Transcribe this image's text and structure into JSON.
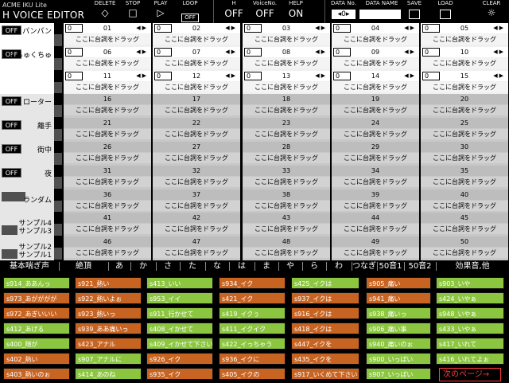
{
  "app": {
    "subtitle": "ACME IKU Lite",
    "title": "H VOICE EDITOR"
  },
  "toolbar": {
    "delete_label": "DELETE",
    "delete_icon": "◇",
    "stop_label": "STOP",
    "stop_icon": "□",
    "play_label": "PLAY",
    "play_icon": "▷",
    "loop_label": "LOOP",
    "loop_value": "OFF",
    "h_label": "H",
    "h_value": "OFF",
    "voiceno_label": "VoiceNo.",
    "voiceno_value": "OFF",
    "help_label": "HELP",
    "help_value": "ON",
    "datano_label": "DATA No.",
    "datano_value": "0",
    "dataname_label": "DATA NAME",
    "save_label": "SAVE",
    "load_label": "LOAD",
    "clear_label": "CLEAR",
    "clear_icon": "☼"
  },
  "drag_text": "ここに台詞をドラッグ",
  "rows": [
    {
      "label": "パンパン",
      "toggle": "OFF",
      "numbers": [
        "01",
        "02",
        "03",
        "04",
        "05"
      ],
      "value": "0",
      "editable": true
    },
    {
      "label": "くちゅくちゅ",
      "toggle": "OFF",
      "numbers": [
        "06",
        "07",
        "08",
        "09",
        "10"
      ],
      "value": "0",
      "editable": true
    },
    {
      "label": "",
      "toggle": "",
      "numbers": [
        "11",
        "12",
        "13",
        "14",
        "15"
      ],
      "value": "0",
      "editable": true
    },
    {
      "label": "ローター",
      "toggle": "OFF",
      "numbers": [
        "16",
        "17",
        "18",
        "19",
        "20"
      ],
      "value": "",
      "editable": false
    },
    {
      "label": "離手",
      "toggle": "OFF",
      "numbers": [
        "21",
        "22",
        "23",
        "24",
        "25"
      ],
      "value": "",
      "editable": false
    },
    {
      "label": "街中",
      "toggle": "OFF",
      "numbers": [
        "26",
        "27",
        "28",
        "29",
        "30"
      ],
      "value": "",
      "editable": false
    },
    {
      "label": "夜",
      "toggle": "OFF",
      "numbers": [
        "31",
        "32",
        "33",
        "34",
        "35"
      ],
      "value": "",
      "editable": false
    },
    {
      "label": "ランダム",
      "toggle": "",
      "numbers": [
        "36",
        "37",
        "38",
        "39",
        "40"
      ],
      "value": "",
      "editable": false
    },
    {
      "label": "サンプル4",
      "toggle": "",
      "numbers": [
        "41",
        "42",
        "43",
        "44",
        "45"
      ],
      "value": "",
      "editable": false
    },
    {
      "label": "サンプル2",
      "toggle": "",
      "numbers": [
        "46",
        "47",
        "48",
        "49",
        "50"
      ],
      "value": "",
      "editable": false
    }
  ],
  "extra_labels": {
    "s3": "サンプル3",
    "s1": "サンプル1"
  },
  "categories": [
    "基本喘ぎ声",
    "絶頂",
    "あ",
    "か",
    "さ",
    "た",
    "な",
    "は",
    "ま",
    "や",
    "ら",
    "わ",
    "つなぎ",
    "50音1",
    "50音2",
    "効果音,他"
  ],
  "voices": [
    [
      {
        "t": "s914_ああんっ",
        "c": "g"
      },
      {
        "t": "s921_熱い",
        "c": "o"
      },
      {
        "t": "s413_いい",
        "c": "g"
      },
      {
        "t": "s934_イク",
        "c": "o"
      },
      {
        "t": "s425_イクは",
        "c": "g"
      },
      {
        "t": "s905_痛い",
        "c": "o"
      },
      {
        "t": "s903_いや",
        "c": "g"
      }
    ],
    [
      {
        "t": "s973_あがががが",
        "c": "o"
      },
      {
        "t": "s922_熱いよぉ",
        "c": "o"
      },
      {
        "t": "s953_イイ",
        "c": "g"
      },
      {
        "t": "s421_イク",
        "c": "o"
      },
      {
        "t": "s937_イクは",
        "c": "o"
      },
      {
        "t": "s941_痛い",
        "c": "o"
      },
      {
        "t": "s424_いやぁ",
        "c": "g"
      }
    ],
    [
      {
        "t": "s972_あぎいいい",
        "c": "o"
      },
      {
        "t": "s923_熱いっ",
        "c": "o"
      },
      {
        "t": "s911_行かせて",
        "c": "g"
      },
      {
        "t": "s419_イクぅ",
        "c": "g"
      },
      {
        "t": "s916_イクは",
        "c": "o"
      },
      {
        "t": "s938_痛いっ",
        "c": "g"
      },
      {
        "t": "s948_いやぁ",
        "c": "g"
      }
    ],
    [
      {
        "t": "s412_あげる",
        "c": "g"
      },
      {
        "t": "s939_ああ痛いっ",
        "c": "o"
      },
      {
        "t": "s408_イかせて",
        "c": "g"
      },
      {
        "t": "s411_イクイク",
        "c": "g"
      },
      {
        "t": "s418_イクは",
        "c": "o"
      },
      {
        "t": "s906_痛い事",
        "c": "g"
      },
      {
        "t": "s433_いやぁ",
        "c": "g"
      }
    ],
    [
      {
        "t": "s400_随が",
        "c": "g"
      },
      {
        "t": "s423_アナル",
        "c": "o"
      },
      {
        "t": "s409_イかせて下さい",
        "c": "g"
      },
      {
        "t": "s422_イっちゃう",
        "c": "g"
      },
      {
        "t": "s447_イクを",
        "c": "o"
      },
      {
        "t": "s940_痛いのぉ",
        "c": "g"
      },
      {
        "t": "s417_いれて",
        "c": "g"
      }
    ],
    [
      {
        "t": "s402_熱い",
        "c": "o"
      },
      {
        "t": "s907_アナルに",
        "c": "g"
      },
      {
        "t": "s926_イク",
        "c": "o"
      },
      {
        "t": "s936_イクに",
        "c": "o"
      },
      {
        "t": "s435_イクを",
        "c": "o"
      },
      {
        "t": "s900_いっぱい",
        "c": "g"
      },
      {
        "t": "s416_いれてよぉ",
        "c": "g"
      }
    ],
    [
      {
        "t": "s403_熱いのぉ",
        "c": "o"
      },
      {
        "t": "s414_あのね",
        "c": "g"
      },
      {
        "t": "s935_イク",
        "c": "o"
      },
      {
        "t": "s405_イクの",
        "c": "o"
      },
      {
        "t": "s917_いくめて下さい",
        "c": "o"
      },
      {
        "t": "s907_いっぱい",
        "c": "g"
      }
    ]
  ],
  "next_page": "次のページ→"
}
